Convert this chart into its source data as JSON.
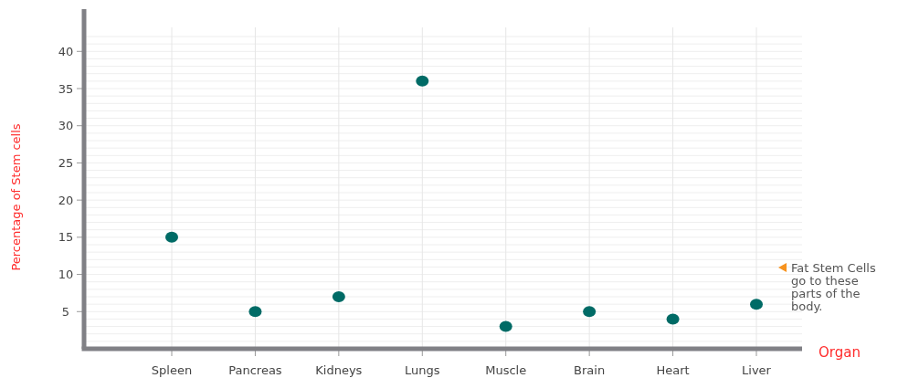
{
  "chart_data": {
    "type": "scatter",
    "xlabel": "Organ",
    "ylabel": "Percentage of Stem cells",
    "categories": [
      "Spleen",
      "Pancreas",
      "Kidneys",
      "Lungs",
      "Muscle",
      "Brain",
      "Heart",
      "Liver"
    ],
    "values": [
      15,
      5,
      7,
      36,
      3,
      5,
      4,
      6
    ],
    "color": "#006b66",
    "ylim": [
      0,
      42
    ],
    "yticks": [
      5,
      10,
      15,
      20,
      25,
      30,
      35,
      40
    ],
    "grid": true,
    "marker": "circle",
    "annotations": [
      "Fat Stem Cells go to these parts of the body."
    ]
  }
}
